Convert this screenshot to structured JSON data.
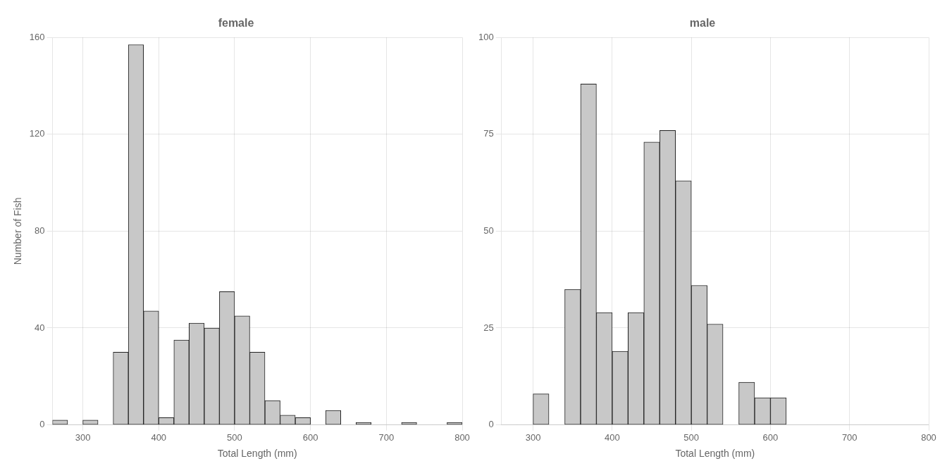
{
  "chart_data": [
    {
      "type": "histogram",
      "title": "female",
      "bins": [
        260,
        280,
        300,
        320,
        340,
        360,
        380,
        400,
        420,
        440,
        460,
        480,
        500,
        520,
        540,
        560,
        580,
        600,
        620,
        640,
        660,
        680,
        700,
        720,
        740,
        760,
        780,
        800
      ],
      "values": [
        2,
        0,
        2,
        0,
        30,
        157,
        47,
        3,
        35,
        42,
        40,
        55,
        45,
        30,
        10,
        4,
        3,
        0,
        6,
        0,
        1,
        0,
        0,
        1,
        0,
        0,
        1
      ],
      "color": "#c8c8c8",
      "xlabel": "Total Length (mm)",
      "ylabel": "Number of Fish",
      "xlim": [
        260,
        800
      ],
      "xticks": [
        300,
        400,
        500,
        600,
        700,
        800
      ],
      "ylim": [
        0,
        160
      ],
      "yticks": [
        0,
        40,
        80,
        120,
        160
      ],
      "grid": true
    },
    {
      "type": "histogram",
      "title": "male",
      "bins": [
        260,
        280,
        300,
        320,
        340,
        360,
        380,
        400,
        420,
        440,
        460,
        480,
        500,
        520,
        540,
        560,
        580,
        600,
        620,
        640,
        660,
        680,
        700,
        720,
        740,
        760,
        780,
        800
      ],
      "values": [
        0,
        0,
        8,
        0,
        35,
        88,
        29,
        19,
        29,
        73,
        76,
        63,
        36,
        26,
        0,
        11,
        7,
        7,
        0,
        0,
        0,
        0,
        0,
        0,
        0,
        0,
        0
      ],
      "color": "#c8c8c8",
      "xlabel": "Total Length (mm)",
      "xlim": [
        260,
        800
      ],
      "xticks": [
        300,
        400,
        500,
        600,
        700,
        800
      ],
      "ylim": [
        0,
        100
      ],
      "yticks": [
        0,
        25,
        50,
        75,
        100
      ],
      "grid": true
    }
  ]
}
